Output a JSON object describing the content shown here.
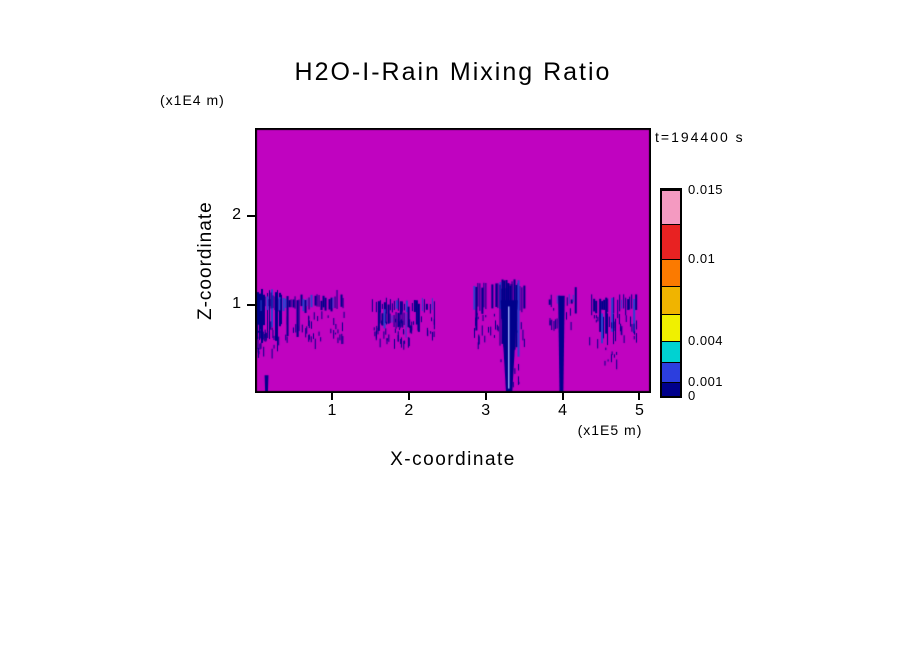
{
  "title": "H2O-I-Rain Mixing Ratio",
  "timestamp": "t=194400 s",
  "axes": {
    "x_title": "X-coordinate",
    "x_unit": "(x1E5 m)",
    "x_ticks": [
      "1",
      "2",
      "3",
      "4",
      "5"
    ],
    "y_title": "Z-coordinate",
    "y_unit": "(x1E4 m)",
    "y_ticks": [
      "1",
      "2"
    ]
  },
  "chart_data": {
    "type": "heatmap",
    "title": "H2O-I-Rain Mixing Ratio",
    "time_label": "t=194400 s",
    "time_seconds": 194400,
    "xlabel": "X-coordinate",
    "ylabel": "Z-coordinate",
    "x_unit": "x1E5 m",
    "z_unit": "x1E4 m",
    "x_range": [
      0,
      5.15
    ],
    "z_range": [
      0,
      3.0
    ],
    "x_tick_values": [
      1,
      2,
      3,
      4,
      5
    ],
    "z_tick_values": [
      1,
      2
    ],
    "grid": false,
    "legend_position": "right-colorbar",
    "seed": 42,
    "colors": {
      "background": "#C003C0",
      "feature": "#00008B",
      "feature_alt": "#2945D0",
      "frame": "#000000"
    },
    "colorbar": {
      "levels": [
        0,
        0.001,
        0.0025,
        0.004,
        0.006,
        0.008,
        0.01,
        0.0125,
        0.015
      ],
      "colors": [
        "#00008B",
        "#2C3EDE",
        "#00D2D2",
        "#F0F000",
        "#F0B400",
        "#FB7A00",
        "#E82222",
        "#F49AC1"
      ],
      "tick_values": [
        0,
        0.001,
        0.004,
        0.01,
        0.015
      ],
      "tick_labels": [
        "0",
        "0.001",
        "0.004",
        "0.01",
        "0.015"
      ]
    },
    "features": {
      "description": "Magenta field with dark-blue rain bands near z=1 (x1E4 m) and precipitation shafts reaching the ground near x=3.3 and x=4.0 (x1E5 m), plus a tiny shaft near x=0.15",
      "bands": [
        {
          "x0": 0.0,
          "x1": 0.34,
          "z0": 0.72,
          "z1": 1.18,
          "tail": 0.25,
          "gap": 0.08
        },
        {
          "x0": 0.0,
          "x1": 0.1,
          "z0": 0.58,
          "z1": 0.95,
          "tail": 0.1,
          "gap": 0.1
        },
        {
          "x0": 0.02,
          "x1": 1.16,
          "z0": 0.93,
          "z1": 1.12,
          "tail": 0.32,
          "gap": 0.15
        },
        {
          "x0": 1.52,
          "x1": 2.34,
          "z0": 0.9,
          "z1": 1.08,
          "tail": 0.22,
          "gap": 0.18
        },
        {
          "x0": 1.62,
          "x1": 2.0,
          "z0": 0.74,
          "z1": 0.95,
          "tail": 0.15,
          "gap": 0.3
        },
        {
          "x0": 2.84,
          "x1": 3.5,
          "z0": 0.92,
          "z1": 1.26,
          "tail": 0.35,
          "gap": 0.1
        },
        {
          "x0": 3.18,
          "x1": 3.44,
          "z0": 0.5,
          "z1": 1.3,
          "tail": 0.4,
          "gap": 0.05
        },
        {
          "x0": 3.82,
          "x1": 4.16,
          "z0": 0.98,
          "z1": 1.12,
          "tail": 0.18,
          "gap": 0.35
        },
        {
          "x0": 4.32,
          "x1": 4.96,
          "z0": 0.9,
          "z1": 1.12,
          "tail": 0.3,
          "gap": 0.15
        },
        {
          "x0": 4.5,
          "x1": 4.7,
          "z0": 0.56,
          "z1": 0.92,
          "tail": 0.2,
          "gap": 0.25
        }
      ],
      "shafts": [
        {
          "xc": 3.305,
          "w_top": 0.22,
          "w_bot": 0.08,
          "z_top": 1.05
        },
        {
          "xc": 3.985,
          "w_top": 0.085,
          "w_bot": 0.05,
          "z_top": 1.1
        },
        {
          "xc": 0.15,
          "w_top": 0.05,
          "w_bot": 0.035,
          "z_top": 0.2
        }
      ],
      "inner_streak": {
        "x": 3.3,
        "z0": 0.05,
        "z1": 0.98,
        "color": "#97A7F7"
      }
    }
  }
}
